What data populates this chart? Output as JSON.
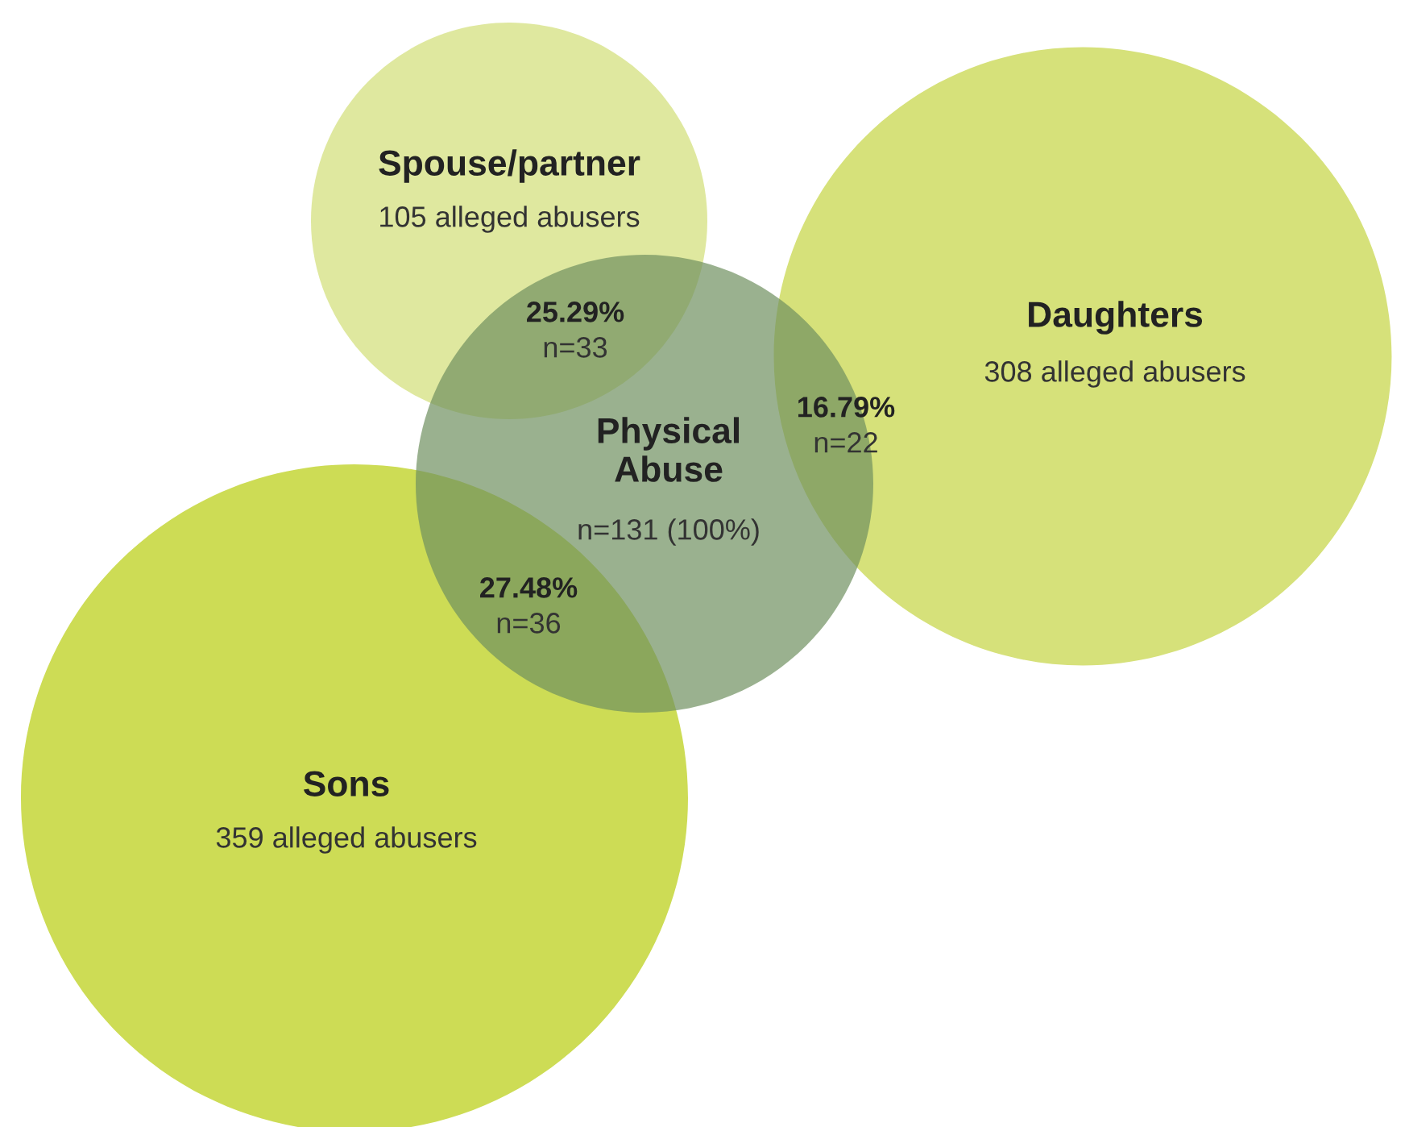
{
  "chart_data": {
    "type": "other",
    "categories": [
      "Spouse/partner",
      "Daughters",
      "Sons",
      "Physical\nAbuse"
    ],
    "values": [
      105,
      308,
      359,
      131
    ],
    "value_labels": [
      "105 alleged abusers",
      "308 alleged abusers",
      "359 alleged abusers",
      "n=131 (100%)"
    ],
    "colors": [
      "#dfe89f",
      "#d6e17a",
      "#cddc55",
      "#6f9060"
    ],
    "annotations": [
      "25.29%\nn=33",
      "16.79%\nn=22",
      "27.48%\nn=36"
    ]
  }
}
